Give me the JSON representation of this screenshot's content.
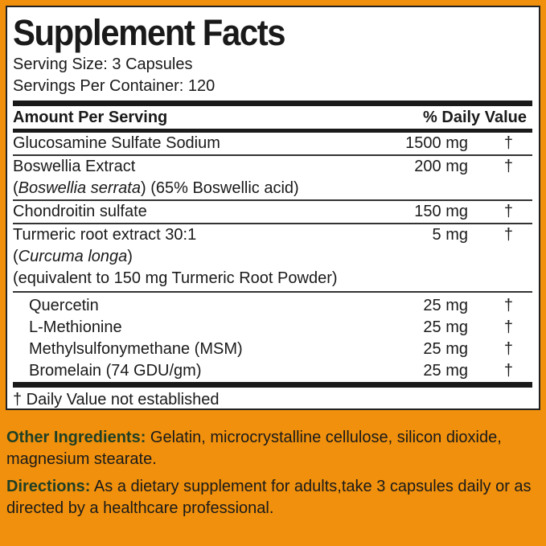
{
  "title": "Supplement Facts",
  "serving_size": "Serving Size: 3 Capsules",
  "servings_per_container": "Servings Per Container: 120",
  "header": {
    "amount": "Amount Per Serving",
    "dv": "% Daily Value"
  },
  "rows": [
    {
      "name": "Glucosamine Sulfate Sodium",
      "amount": "1500 mg",
      "dv": "†"
    },
    {
      "name": "Boswellia Extract",
      "sub": "(Boswellia serrata) (65% Boswellic acid)",
      "sub_italic": "Boswellia serrata",
      "sub_rest": " (65% Boswellic acid)",
      "amount": "200 mg",
      "dv": "†"
    },
    {
      "name": "Chondroitin sulfate",
      "amount": "150 mg",
      "dv": "†"
    },
    {
      "name": "Turmeric root extract 30:1",
      "sub_italic": "Curcuma longa",
      "sub2": "(equivalent to 150 mg Turmeric Root Powder)",
      "amount": "5 mg",
      "dv": "†"
    },
    {
      "name": "Quercetin",
      "amount": "25 mg",
      "dv": "†"
    },
    {
      "name": "L-Methionine",
      "amount": "25 mg",
      "dv": "†"
    },
    {
      "name": "Methylsulfonymethane (MSM)",
      "amount": "25 mg",
      "dv": "†"
    },
    {
      "name": "Bromelain (74 GDU/gm)",
      "amount": "25 mg",
      "dv": "†"
    }
  ],
  "footnote": "† Daily Value not established",
  "other_ingredients": {
    "label": "Other Ingredients:",
    "text": " Gelatin, microcrystalline cellulose, silicon dioxide, magnesium stearate."
  },
  "directions": {
    "label": "Directions:",
    "text": " As a dietary supplement for adults,take 3 capsules daily or as directed by a healthcare professional."
  },
  "colors": {
    "background": "#f0900c",
    "label_green": "#1f3f25"
  }
}
